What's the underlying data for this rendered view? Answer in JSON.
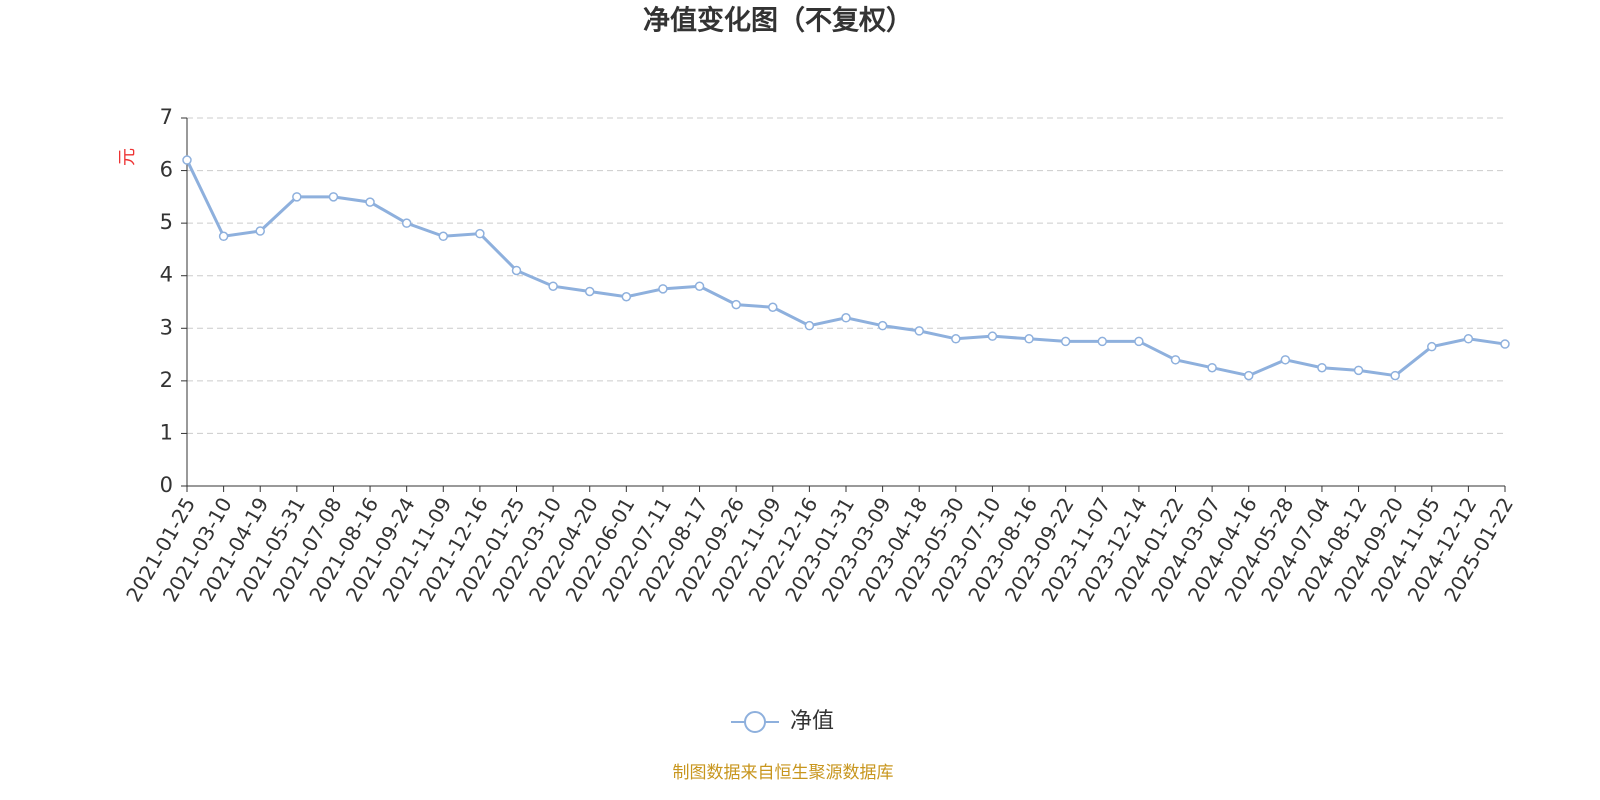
{
  "chart_data": {
    "type": "line",
    "title": "净值变化图（不复权）",
    "y_axis_label": "元",
    "source": "制图数据来自恒生聚源数据库",
    "categories": [
      "2021-01-25",
      "2021-03-10",
      "2021-04-19",
      "2021-05-31",
      "2021-07-08",
      "2021-08-16",
      "2021-09-24",
      "2021-11-09",
      "2021-12-16",
      "2022-01-25",
      "2022-03-10",
      "2022-04-20",
      "2022-06-01",
      "2022-07-11",
      "2022-08-17",
      "2022-09-26",
      "2022-11-09",
      "2022-12-16",
      "2023-01-31",
      "2023-03-09",
      "2023-04-18",
      "2023-05-30",
      "2023-07-10",
      "2023-08-16",
      "2023-09-22",
      "2023-11-07",
      "2023-12-14",
      "2024-01-22",
      "2024-03-07",
      "2024-04-16",
      "2024-05-28",
      "2024-07-04",
      "2024-08-12",
      "2024-09-20",
      "2024-11-05",
      "2024-12-12",
      "2025-01-22"
    ],
    "series": [
      {
        "name": "净值",
        "color": "#8eb0dd",
        "values": [
          6.2,
          4.75,
          4.85,
          5.5,
          5.5,
          5.4,
          5.0,
          4.75,
          4.8,
          4.1,
          3.8,
          3.7,
          3.6,
          3.75,
          3.8,
          3.45,
          3.4,
          3.05,
          3.2,
          3.05,
          2.95,
          2.8,
          2.85,
          2.8,
          2.75,
          2.75,
          2.75,
          2.4,
          2.25,
          2.1,
          2.4,
          2.25,
          2.2,
          2.1,
          2.65,
          2.8,
          2.7
        ]
      }
    ],
    "ylim": [
      0,
      7
    ],
    "yticks": [
      0,
      1,
      2,
      3,
      4,
      5,
      6,
      7
    ],
    "grid": true,
    "legend": "bottom"
  }
}
